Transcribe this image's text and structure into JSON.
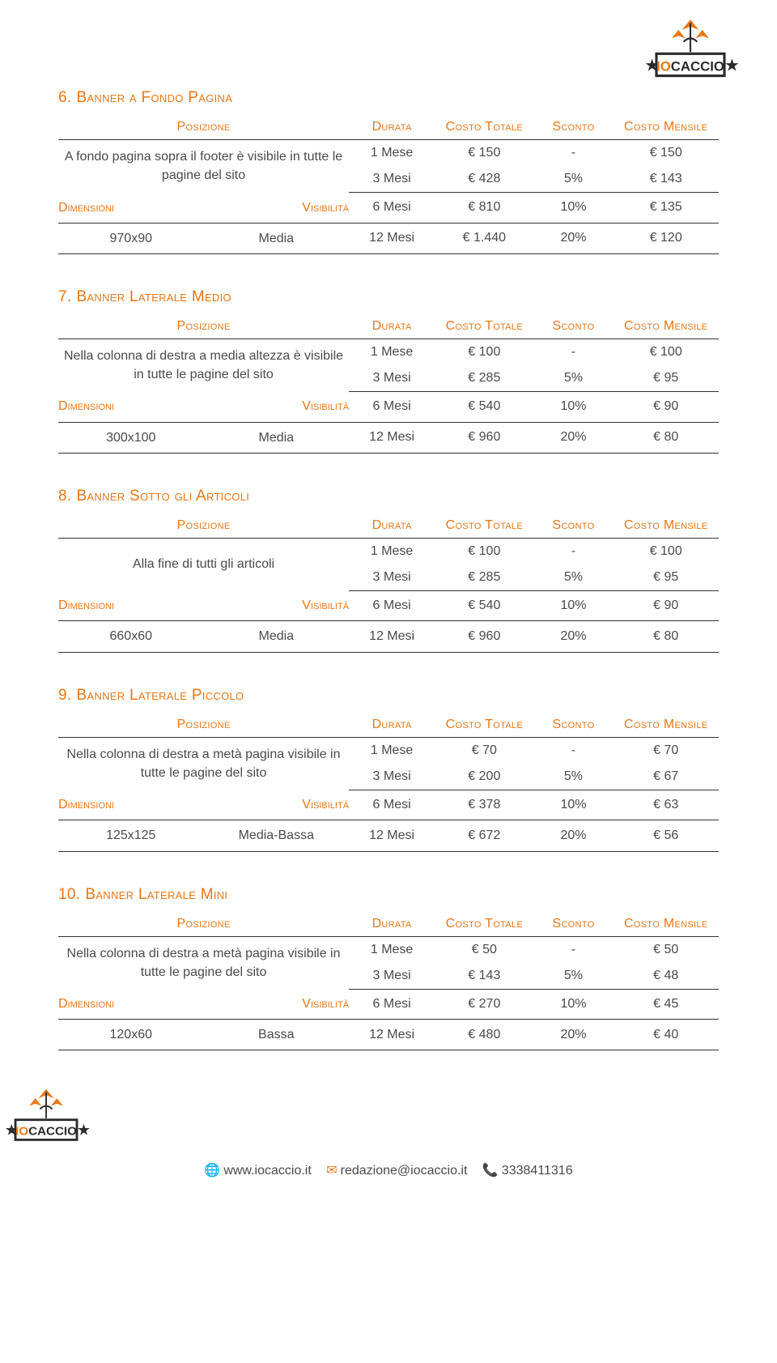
{
  "colors": {
    "accent": "#e87717",
    "text": "#4a4a4a",
    "border": "#333333",
    "bg": "#ffffff",
    "logo_bird": "#e87717",
    "logo_star": "#2b2b2b",
    "logo_box_border": "#2b2b2b",
    "logo_io": "#e87717",
    "logo_caccio": "#2b2b2b"
  },
  "logo": {
    "io": "IO",
    "caccio": "CACCIO"
  },
  "table_headers": {
    "posizione": "Posizione",
    "durata": "Durata",
    "costo_totale": "Costo Totale",
    "sconto": "Sconto",
    "costo_mensile": "Costo Mensile",
    "dimensioni": "Dimensioni",
    "visibilita": "Visibilità"
  },
  "sections": [
    {
      "num": "6.",
      "title": "Banner a Fondo Pagina",
      "position": "A fondo pagina sopra il footer è visibile in tutte le pagine del sito",
      "dim": "970x90",
      "vis": "Media",
      "rows": [
        {
          "durata": "1 Mese",
          "totale": "€ 150",
          "sconto": "-",
          "mensile": "€ 150"
        },
        {
          "durata": "3 Mesi",
          "totale": "€ 428",
          "sconto": "5%",
          "mensile": "€ 143"
        },
        {
          "durata": "6 Mesi",
          "totale": "€ 810",
          "sconto": "10%",
          "mensile": "€ 135"
        },
        {
          "durata": "12 Mesi",
          "totale": "€ 1.440",
          "sconto": "20%",
          "mensile": "€ 120"
        }
      ]
    },
    {
      "num": "7.",
      "title": "Banner Laterale Medio",
      "position": "Nella colonna di destra a media altezza è visibile in tutte le pagine del sito",
      "dim": "300x100",
      "vis": "Media",
      "rows": [
        {
          "durata": "1 Mese",
          "totale": "€ 100",
          "sconto": "-",
          "mensile": "€ 100"
        },
        {
          "durata": "3 Mesi",
          "totale": "€ 285",
          "sconto": "5%",
          "mensile": "€ 95"
        },
        {
          "durata": "6 Mesi",
          "totale": "€ 540",
          "sconto": "10%",
          "mensile": "€ 90"
        },
        {
          "durata": "12 Mesi",
          "totale": "€ 960",
          "sconto": "20%",
          "mensile": "€ 80"
        }
      ]
    },
    {
      "num": "8.",
      "title": "Banner Sotto gli Articoli",
      "position": "Alla fine di tutti gli articoli",
      "dim": "660x60",
      "vis": "Media",
      "rows": [
        {
          "durata": "1 Mese",
          "totale": "€ 100",
          "sconto": "-",
          "mensile": "€ 100"
        },
        {
          "durata": "3 Mesi",
          "totale": "€ 285",
          "sconto": "5%",
          "mensile": "€ 95"
        },
        {
          "durata": "6 Mesi",
          "totale": "€ 540",
          "sconto": "10%",
          "mensile": "€ 90"
        },
        {
          "durata": "12 Mesi",
          "totale": "€ 960",
          "sconto": "20%",
          "mensile": "€ 80"
        }
      ]
    },
    {
      "num": "9.",
      "title": "Banner Laterale Piccolo",
      "position": "Nella colonna di destra a metà pagina visibile in tutte le pagine del sito",
      "dim": "125x125",
      "vis": "Media-Bassa",
      "rows": [
        {
          "durata": "1 Mese",
          "totale": "€ 70",
          "sconto": "-",
          "mensile": "€ 70"
        },
        {
          "durata": "3 Mesi",
          "totale": "€ 200",
          "sconto": "5%",
          "mensile": "€ 67"
        },
        {
          "durata": "6 Mesi",
          "totale": "€ 378",
          "sconto": "10%",
          "mensile": "€ 63"
        },
        {
          "durata": "12 Mesi",
          "totale": "€ 672",
          "sconto": "20%",
          "mensile": "€ 56"
        }
      ]
    },
    {
      "num": "10.",
      "title": "Banner Laterale Mini",
      "position": "Nella colonna di destra a metà pagina visibile in tutte le pagine del sito",
      "dim": "120x60",
      "vis": "Bassa",
      "rows": [
        {
          "durata": "1 Mese",
          "totale": "€ 50",
          "sconto": "-",
          "mensile": "€ 50"
        },
        {
          "durata": "3 Mesi",
          "totale": "€ 143",
          "sconto": "5%",
          "mensile": "€ 48"
        },
        {
          "durata": "6 Mesi",
          "totale": "€ 270",
          "sconto": "10%",
          "mensile": "€ 45"
        },
        {
          "durata": "12 Mesi",
          "totale": "€ 480",
          "sconto": "20%",
          "mensile": "€ 40"
        }
      ]
    }
  ],
  "footer": {
    "web": "www.iocaccio.it",
    "email": "redazione@iocaccio.it",
    "phone": "3338411316"
  }
}
